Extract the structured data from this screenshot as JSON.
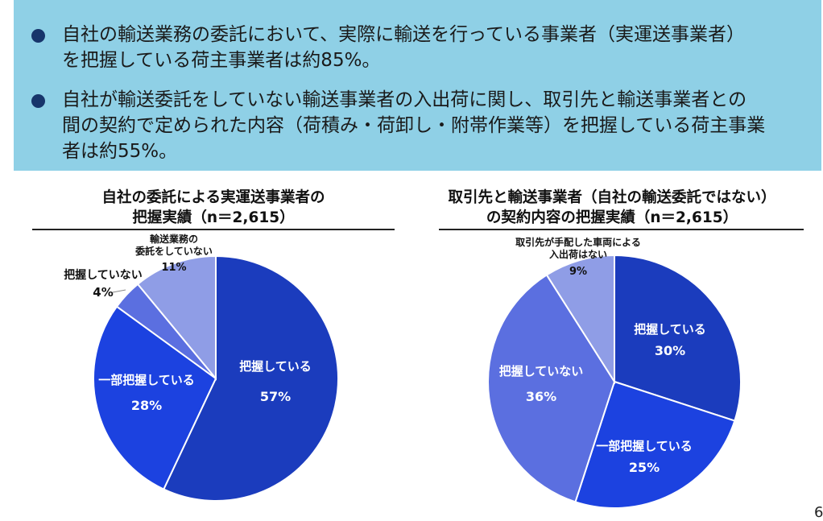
{
  "summary": {
    "bullets": [
      {
        "lines": [
          "自社の輸送業務の委託において、実際に輸送を行っている事業者（実運送事業者）",
          "を把握している荷主事業者は約85%。"
        ]
      },
      {
        "lines": [
          "自社が輸送委託をしていない輸送事業者の入出荷に関し、取引先と輸送事業者との",
          "間の契約で定められた内容（荷積み・荷卸し・附帯作業等）を把握している荷主事業",
          "者は約55%。"
        ]
      }
    ]
  },
  "chart_data": [
    {
      "type": "pie",
      "title": "自社の委託による実運送事業者の\n把握実績（n＝2,615）",
      "title_lines": [
        "自社の委託による実運送事業者の",
        "把握実績（n＝2,615）"
      ],
      "slices": [
        {
          "label": "把握している",
          "value": 57,
          "display": "57%",
          "color": "#1b3cbd"
        },
        {
          "label": "一部把握している",
          "value": 28,
          "display": "28%",
          "color": "#1c42e0"
        },
        {
          "label": "把握していない",
          "value": 4,
          "display": "4%",
          "color": "#5b6fe0"
        },
        {
          "label": "輸送業務の委託をしていない",
          "label_lines": [
            "輸送業務の",
            "委託をしていない"
          ],
          "value": 11,
          "display": "11%",
          "color": "#8f9de6"
        }
      ]
    },
    {
      "type": "pie",
      "title": "取引先と輸送事業者（自社の輸送委託ではない）\nの契約内容の把握実績（n＝2,615）",
      "title_lines": [
        "取引先と輸送事業者（自社の輸送委託ではない）",
        "の契約内容の把握実績（n＝2,615）"
      ],
      "slices": [
        {
          "label": "把握している",
          "value": 30,
          "display": "30%",
          "color": "#1b3cbd"
        },
        {
          "label": "一部把握している",
          "value": 25,
          "display": "25%",
          "color": "#1c42e0"
        },
        {
          "label": "把握していない",
          "value": 36,
          "display": "36%",
          "color": "#5b6fe0"
        },
        {
          "label": "取引先が手配した車両による入出荷はない",
          "label_lines": [
            "取引先が手配した車両による",
            "入出荷はない"
          ],
          "value": 9,
          "display": "9%",
          "color": "#8f9de6"
        }
      ]
    }
  ],
  "page_number": "6"
}
